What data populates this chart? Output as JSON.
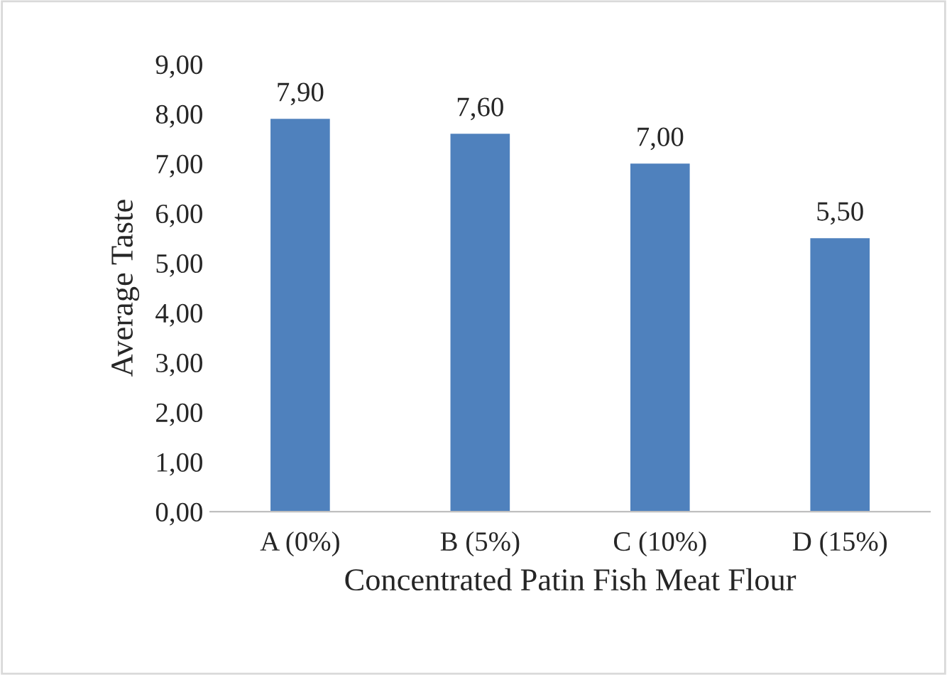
{
  "chart_data": {
    "type": "bar",
    "xlabel": "Concentrated Patin Fish Meat Flour",
    "ylabel": "Average Taste",
    "categories": [
      "A (0%)",
      "B (5%)",
      "C (10%)",
      "D (15%)"
    ],
    "values": [
      7.9,
      7.6,
      7.0,
      5.5
    ],
    "value_labels": [
      "7,90",
      "7,60",
      "7,00",
      "5,50"
    ],
    "color": "#4f81bd",
    "ylim": [
      0,
      9
    ],
    "yticks": [
      {
        "value": 0,
        "label": "0,00"
      },
      {
        "value": 1,
        "label": "1,00"
      },
      {
        "value": 2,
        "label": "2,00"
      },
      {
        "value": 3,
        "label": "3,00"
      },
      {
        "value": 4,
        "label": "4,00"
      },
      {
        "value": 5,
        "label": "5,00"
      },
      {
        "value": 6,
        "label": "6,00"
      },
      {
        "value": 7,
        "label": "7,00"
      },
      {
        "value": 8,
        "label": "8,00"
      },
      {
        "value": 9,
        "label": "9,00"
      }
    ],
    "grid": false,
    "legend": false
  }
}
